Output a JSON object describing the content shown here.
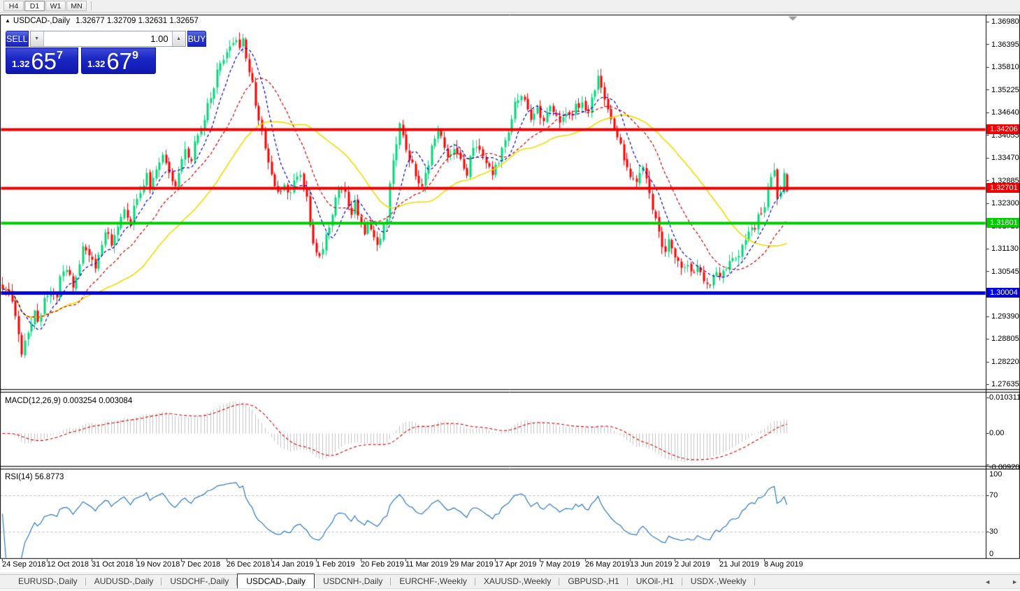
{
  "toolbar": {
    "timeframes": [
      {
        "label": "H4",
        "active": false
      },
      {
        "label": "D1",
        "active": true
      },
      {
        "label": "W1",
        "active": false
      },
      {
        "label": "MN",
        "active": false
      }
    ]
  },
  "chart_header": {
    "collapse_icon": "▲",
    "symbol": "USDCAD-,Daily",
    "ohlc": "1.32677 1.32709 1.32631 1.32657"
  },
  "trade_panel": {
    "sell_label": "SELL",
    "buy_label": "BUY",
    "volume": "1.00",
    "spinner_down_icon": "▼",
    "spinner_up_icon": "▲",
    "sell_price": {
      "prefix": "1.32",
      "big": "65",
      "pip": "7"
    },
    "buy_price": {
      "prefix": "1.32",
      "big": "67",
      "pip": "9"
    }
  },
  "price_axis": {
    "labels": [
      "1.36980",
      "1.36395",
      "1.35810",
      "1.35225",
      "1.34640",
      "1.34055",
      "1.33470",
      "1.32885",
      "1.32300",
      "1.31715",
      "1.31130",
      "1.30545",
      "1.29390",
      "1.28805",
      "1.28220",
      "1.27635"
    ],
    "tags": [
      {
        "text": "1.34206",
        "bg": "#ee0000"
      },
      {
        "text": "1.32701",
        "bg": "#ee0000"
      },
      {
        "text": "1.31801",
        "bg": "#00cc00"
      },
      {
        "text": "1.30004",
        "bg": "#0000dd"
      }
    ]
  },
  "macd_panel": {
    "label": "MACD(12,26,9) 0.003254 0.003084",
    "axis": [
      "0.010311",
      "0.00",
      "-0.00920"
    ]
  },
  "rsi_panel": {
    "label": "RSI(14) 56.8773",
    "axis": [
      {
        "v": 100,
        "text": "100"
      },
      {
        "v": 70,
        "text": "70"
      },
      {
        "v": 30,
        "text": "30"
      },
      {
        "v": 0,
        "text": "0"
      }
    ]
  },
  "date_axis": [
    "24 Sep 2018",
    "12 Oct 2018",
    "31 Oct 2018",
    "19 Nov 2018",
    "7 Dec 2018",
    "26 Dec 2018",
    "14 Jan 2019",
    "1 Feb 2019",
    "20 Feb 2019",
    "11 Mar 2019",
    "29 Mar 2019",
    "17 Apr 2019",
    "7 May 2019",
    "26 May 2019",
    "13 Jun 2019",
    "2 Jul 2019",
    "21 Jul 2019",
    "8 Aug 2019"
  ],
  "tab_bar": {
    "tabs": [
      {
        "label": "EURUSD-,Daily",
        "active": false
      },
      {
        "label": "AUDUSD-,Daily",
        "active": false
      },
      {
        "label": "USDCHF-,Daily",
        "active": false
      },
      {
        "label": "USDCAD-,Daily",
        "active": true
      },
      {
        "label": "USDCNH-,Daily",
        "active": false
      },
      {
        "label": "EURCHF-,Weekly",
        "active": false
      },
      {
        "label": "XAUUSD-,Weekly",
        "active": false
      },
      {
        "label": "GBPUSD-,H1",
        "active": false
      },
      {
        "label": "UKOil-,H1",
        "active": false
      },
      {
        "label": "USDX-,Weekly",
        "active": false
      }
    ],
    "prev_icon": "◄",
    "next_icon": "►"
  },
  "chart_data": {
    "type": "candlestick",
    "symbol": "USDCAD-",
    "timeframe": "Daily",
    "visible_range": {
      "start": "24 Sep 2018",
      "end": "15 Aug 2019"
    },
    "y_axis": {
      "top": 1.3698,
      "bottom": 1.2764,
      "tick_step": 0.00585
    },
    "candles_visible": 246,
    "candle_up_color": "#00d878",
    "candle_down_color": "#ff0000",
    "overlays": [
      {
        "name": "ma-fast",
        "style": "dashed",
        "color": "#0000cc",
        "period": 8
      },
      {
        "name": "ma-mid",
        "style": "dashed",
        "color": "#cc0000",
        "period": 20
      },
      {
        "name": "ma-slow",
        "style": "solid",
        "color": "#f0dc00",
        "period": 40
      }
    ],
    "horizontal_lines": [
      {
        "price": 1.34206,
        "color": "#ee0000",
        "thickness": 4
      },
      {
        "price": 1.32701,
        "color": "#ee0000",
        "thickness": 4
      },
      {
        "price": 1.31801,
        "color": "#00cc00",
        "thickness": 4
      },
      {
        "price": 1.30004,
        "color": "#0000dd",
        "thickness": 5
      }
    ],
    "indicators": [
      {
        "name": "MACD",
        "params": [
          12,
          26,
          9
        ],
        "current": [
          0.003254,
          0.003084
        ],
        "histogram_color": "#c4c4c4",
        "signal_color": "#dd0000",
        "axis_max": 0.010311,
        "axis_min": -0.0092
      },
      {
        "name": "RSI",
        "params": [
          14
        ],
        "current": 56.8773,
        "line_color": "#2e79c0",
        "levels": [
          70,
          30
        ]
      }
    ],
    "close_anchors": [
      [
        0,
        1.301
      ],
      [
        2,
        1.2995
      ],
      [
        4,
        1.295
      ],
      [
        5,
        1.29
      ],
      [
        6,
        1.2845
      ],
      [
        8,
        1.289
      ],
      [
        10,
        1.295
      ],
      [
        11,
        1.292
      ],
      [
        13,
        1.298
      ],
      [
        15,
        1.301
      ],
      [
        17,
        1.299
      ],
      [
        18,
        1.304
      ],
      [
        20,
        1.306
      ],
      [
        22,
        1.302
      ],
      [
        24,
        1.308
      ],
      [
        25,
        1.312
      ],
      [
        27,
        1.31
      ],
      [
        29,
        1.306
      ],
      [
        31,
        1.312
      ],
      [
        32,
        1.316
      ],
      [
        34,
        1.313
      ],
      [
        36,
        1.317
      ],
      [
        38,
        1.322
      ],
      [
        40,
        1.318
      ],
      [
        41,
        1.322
      ],
      [
        43,
        1.326
      ],
      [
        45,
        1.331
      ],
      [
        46,
        1.327
      ],
      [
        48,
        1.332
      ],
      [
        50,
        1.336
      ],
      [
        52,
        1.331
      ],
      [
        54,
        1.327
      ],
      [
        55,
        1.332
      ],
      [
        57,
        1.337
      ],
      [
        59,
        1.334
      ],
      [
        60,
        1.339
      ],
      [
        62,
        1.342
      ],
      [
        64,
        1.348
      ],
      [
        66,
        1.353
      ],
      [
        67,
        1.358
      ],
      [
        69,
        1.361
      ],
      [
        71,
        1.364
      ],
      [
        73,
        1.366
      ],
      [
        74,
        1.363
      ],
      [
        75,
        1.3655
      ],
      [
        76,
        1.36
      ],
      [
        78,
        1.354
      ],
      [
        79,
        1.348
      ],
      [
        80,
        1.344
      ],
      [
        82,
        1.338
      ],
      [
        83,
        1.334
      ],
      [
        84,
        1.33
      ],
      [
        86,
        1.326
      ],
      [
        88,
        1.328
      ],
      [
        90,
        1.325
      ],
      [
        91,
        1.328
      ],
      [
        93,
        1.33
      ],
      [
        95,
        1.325
      ],
      [
        96,
        1.318
      ],
      [
        97,
        1.312
      ],
      [
        99,
        1.309
      ],
      [
        100,
        1.312
      ],
      [
        101,
        1.315
      ],
      [
        103,
        1.32
      ],
      [
        104,
        1.324
      ],
      [
        105,
        1.327
      ],
      [
        107,
        1.325
      ],
      [
        108,
        1.323
      ],
      [
        109,
        1.32
      ],
      [
        110,
        1.323
      ],
      [
        112,
        1.318
      ],
      [
        113,
        1.315
      ],
      [
        114,
        1.318
      ],
      [
        116,
        1.315
      ],
      [
        117,
        1.313
      ],
      [
        118,
        1.315
      ],
      [
        120,
        1.32
      ],
      [
        121,
        1.328
      ],
      [
        122,
        1.335
      ],
      [
        124,
        1.343
      ],
      [
        125,
        1.34
      ],
      [
        126,
        1.337
      ],
      [
        128,
        1.333
      ],
      [
        130,
        1.329
      ],
      [
        131,
        1.327
      ],
      [
        133,
        1.333
      ],
      [
        134,
        1.339
      ],
      [
        136,
        1.342
      ],
      [
        138,
        1.338
      ],
      [
        139,
        1.335
      ],
      [
        141,
        1.337
      ],
      [
        143,
        1.334
      ],
      [
        145,
        1.331
      ],
      [
        146,
        1.335
      ],
      [
        148,
        1.338
      ],
      [
        150,
        1.335
      ],
      [
        152,
        1.333
      ],
      [
        153,
        1.331
      ],
      [
        155,
        1.334
      ],
      [
        157,
        1.339
      ],
      [
        159,
        1.344
      ],
      [
        160,
        1.349
      ],
      [
        162,
        1.351
      ],
      [
        164,
        1.347
      ],
      [
        165,
        1.344
      ],
      [
        167,
        1.347
      ],
      [
        169,
        1.345
      ],
      [
        171,
        1.348
      ],
      [
        172,
        1.346
      ],
      [
        174,
        1.344
      ],
      [
        176,
        1.347
      ],
      [
        178,
        1.345
      ],
      [
        179,
        1.348
      ],
      [
        181,
        1.349
      ],
      [
        183,
        1.347
      ],
      [
        185,
        1.352
      ],
      [
        186,
        1.355
      ],
      [
        187,
        1.352
      ],
      [
        189,
        1.347
      ],
      [
        191,
        1.343
      ],
      [
        193,
        1.339
      ],
      [
        194,
        1.335
      ],
      [
        196,
        1.33
      ],
      [
        198,
        1.328
      ],
      [
        200,
        1.333
      ],
      [
        201,
        1.329
      ],
      [
        203,
        1.322
      ],
      [
        205,
        1.315
      ],
      [
        207,
        1.31
      ],
      [
        208,
        1.313
      ],
      [
        210,
        1.309
      ],
      [
        212,
        1.306
      ],
      [
        214,
        1.308
      ],
      [
        215,
        1.305
      ],
      [
        217,
        1.307
      ],
      [
        219,
        1.304
      ],
      [
        221,
        1.302
      ],
      [
        222,
        1.305
      ],
      [
        224,
        1.304
      ],
      [
        226,
        1.307
      ],
      [
        228,
        1.31
      ],
      [
        229,
        1.308
      ],
      [
        231,
        1.312
      ],
      [
        233,
        1.315
      ],
      [
        235,
        1.317
      ],
      [
        236,
        1.32
      ],
      [
        238,
        1.322
      ],
      [
        239,
        1.328
      ],
      [
        241,
        1.331
      ],
      [
        242,
        1.325
      ],
      [
        243,
        1.327
      ],
      [
        244,
        1.33
      ],
      [
        245,
        1.3266
      ]
    ]
  }
}
